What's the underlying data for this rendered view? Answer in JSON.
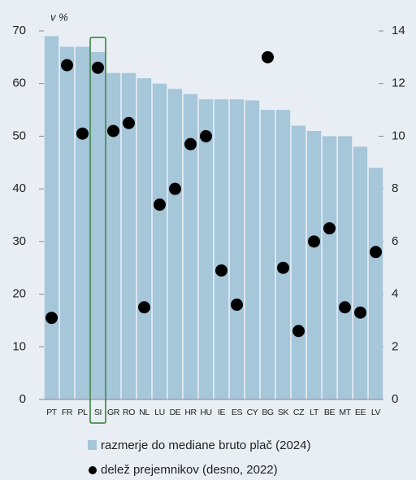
{
  "chart_data": {
    "type": "bar",
    "y_label": "v %",
    "categories": [
      "PT",
      "FR",
      "PL",
      "SI",
      "GR",
      "RO",
      "NL",
      "LU",
      "DE",
      "HR",
      "HU",
      "IE",
      "ES",
      "CY",
      "BG",
      "SK",
      "CZ",
      "LT",
      "BE",
      "MT",
      "EE",
      "LV"
    ],
    "series": [
      {
        "name": "razmerje do mediane bruto plač (2024)",
        "color": "#a6c6da",
        "type": "bar",
        "values": [
          69,
          67,
          67,
          66,
          62,
          62,
          61,
          60,
          59,
          58,
          57,
          57,
          57,
          56.8,
          55,
          55,
          52,
          51,
          50,
          50,
          48,
          44
        ]
      },
      {
        "name": "delež prejemnikov (desno, 2022)",
        "color": "#000000",
        "type": "scatter",
        "axis": "y2",
        "values": [
          3.1,
          12.7,
          10.1,
          12.6,
          10.2,
          10.5,
          3.5,
          7.4,
          8.0,
          9.7,
          10.0,
          4.9,
          3.6,
          null,
          13.0,
          5.0,
          2.6,
          6.0,
          6.5,
          3.5,
          3.3,
          5.6
        ]
      }
    ],
    "ylim": [
      0,
      70
    ],
    "yticks": [
      0,
      10,
      20,
      30,
      40,
      50,
      60,
      70
    ],
    "y2lim": [
      0,
      14
    ],
    "y2ticks": [
      0,
      2,
      4,
      6,
      8,
      10,
      12,
      14
    ],
    "highlight": "SI",
    "highlight_color": "#2e7d32"
  }
}
